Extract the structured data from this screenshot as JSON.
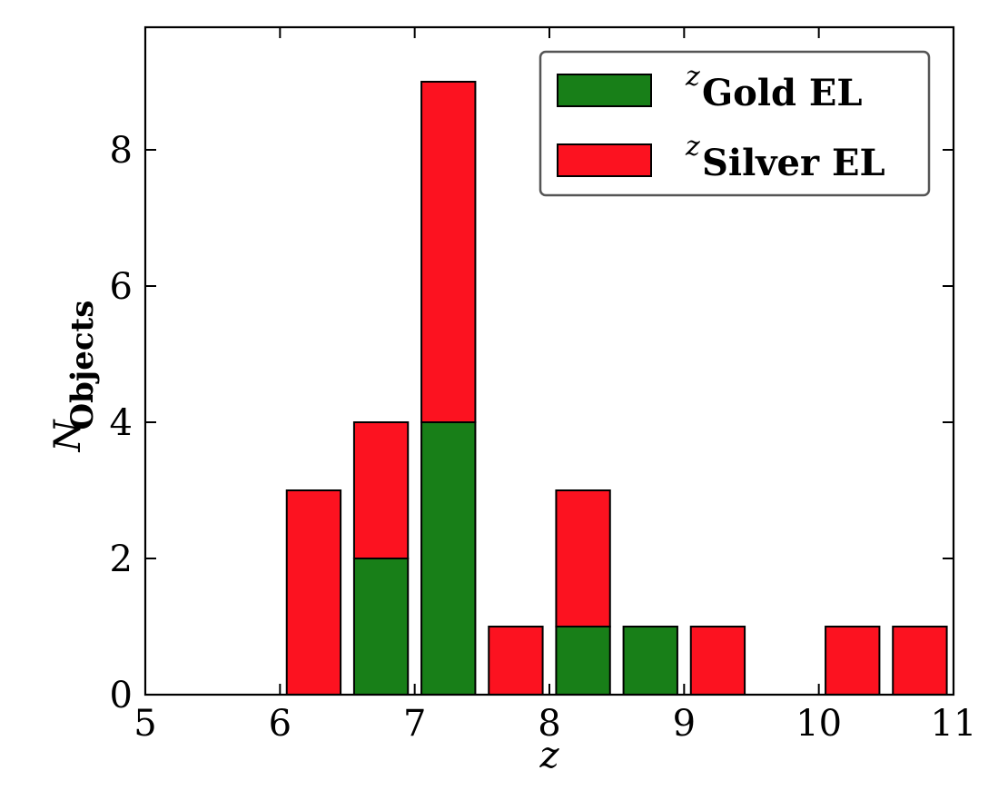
{
  "chart_data": {
    "type": "bar",
    "stacked": true,
    "bin_width": 0.5,
    "bin_starts": [
      5.0,
      5.5,
      6.0,
      6.5,
      7.0,
      7.5,
      8.0,
      8.5,
      9.0,
      9.5,
      10.0,
      10.5
    ],
    "series": [
      {
        "name": "Gold EL",
        "name_superscript": "z",
        "color": "#187f18",
        "values": [
          0,
          0,
          0,
          2,
          4,
          0,
          1,
          1,
          0,
          0,
          0,
          0
        ]
      },
      {
        "name": "Silver EL",
        "name_superscript": "z",
        "color": "#fc1220",
        "values": [
          0,
          0,
          3,
          2,
          5,
          1,
          2,
          0,
          1,
          0,
          1,
          1
        ]
      }
    ],
    "xlabel": "z",
    "ylabel": "N",
    "ylabel_subscript": "Objects",
    "xlim": [
      5,
      11
    ],
    "ylim": [
      0,
      9.8
    ],
    "xticks": [
      5,
      6,
      7,
      8,
      9,
      10,
      11
    ],
    "yticks": [
      0,
      2,
      4,
      6,
      8
    ],
    "legend_position": "top-right",
    "grid": false
  }
}
